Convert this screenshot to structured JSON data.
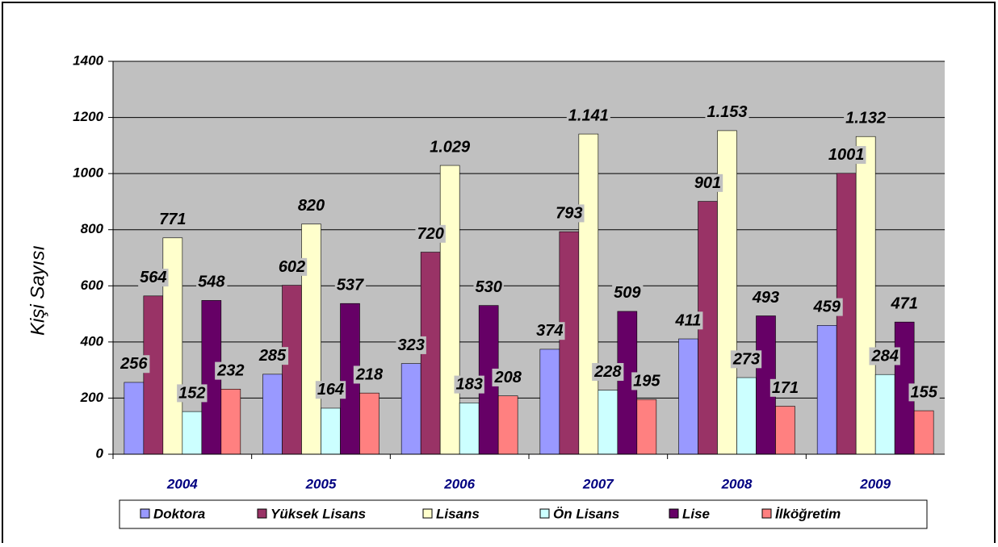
{
  "chart_data": {
    "type": "bar",
    "y_label": "Kişi Sayısı",
    "categories": [
      "2004",
      "2005",
      "2006",
      "2007",
      "2008",
      "2009"
    ],
    "series": [
      {
        "name": "Doktora",
        "color": "#9999ff",
        "values": [
          256,
          285,
          323,
          374,
          411,
          459
        ]
      },
      {
        "name": "Yüksek Lisans",
        "color": "#993366",
        "values": [
          564,
          602,
          720,
          793,
          901,
          1001
        ]
      },
      {
        "name": "Lisans",
        "color": "#ffffcc",
        "values": [
          771,
          820,
          1029,
          1141,
          1153,
          1132
        ],
        "value_labels": [
          "771",
          "820",
          "1.029",
          "1.141",
          "1.153",
          "1.132"
        ]
      },
      {
        "name": "Ön Lisans",
        "color": "#ccffff",
        "values": [
          152,
          164,
          183,
          228,
          273,
          284
        ]
      },
      {
        "name": "Lise",
        "color": "#660066",
        "values": [
          548,
          537,
          530,
          509,
          493,
          471
        ]
      },
      {
        "name": "İlköğretim",
        "color": "#ff8080",
        "values": [
          232,
          218,
          208,
          195,
          171,
          155
        ]
      }
    ],
    "ylim": [
      0,
      1400
    ],
    "yticks": [
      0,
      200,
      400,
      600,
      800,
      1000,
      1200,
      1400
    ],
    "grid": true,
    "legend": "bottom"
  }
}
